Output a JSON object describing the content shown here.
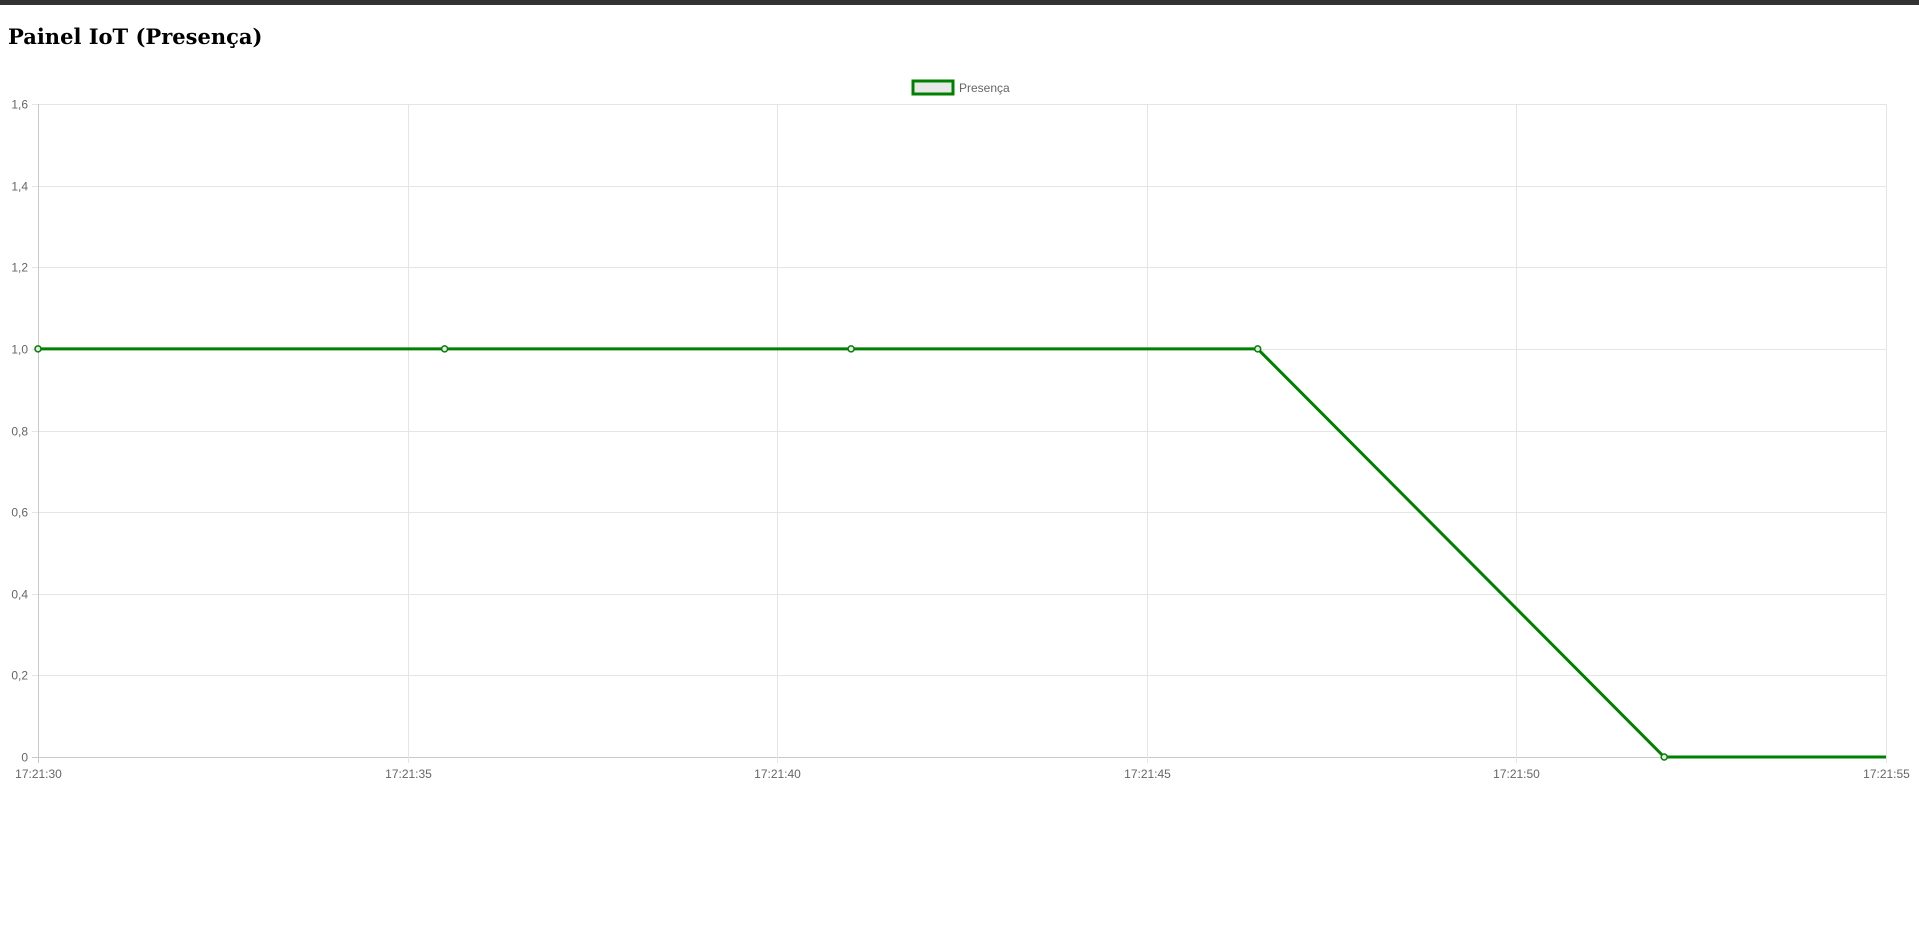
{
  "page": {
    "title": "Painel IoT (Presença)"
  },
  "colors": {
    "series_line": "#008000",
    "series_fill": "#e8e8e8",
    "grid": "#e5e5e5",
    "axis": "#c8c8c8",
    "tick_text": "#666666"
  },
  "chart_data": {
    "type": "line",
    "title": "",
    "xlabel": "",
    "ylabel": "",
    "legend_position": "top-center",
    "grid": true,
    "xlim": [
      "17:21:30",
      "17:21:55"
    ],
    "ylim": [
      0,
      1.6
    ],
    "x_ticks": [
      "17:21:30",
      "17:21:35",
      "17:21:40",
      "17:21:45",
      "17:21:50",
      "17:21:55"
    ],
    "y_ticks": [
      "0",
      "0,2",
      "0,4",
      "0,6",
      "0,8",
      "1,0",
      "1,2",
      "1,4",
      "1,6"
    ],
    "series": [
      {
        "name": "Presença",
        "x": [
          "17:21:30",
          "17:21:35.5",
          "17:21:41",
          "17:21:46.5",
          "17:21:52",
          "17:21:55"
        ],
        "y": [
          1,
          1,
          1,
          1,
          0,
          0
        ]
      }
    ]
  }
}
